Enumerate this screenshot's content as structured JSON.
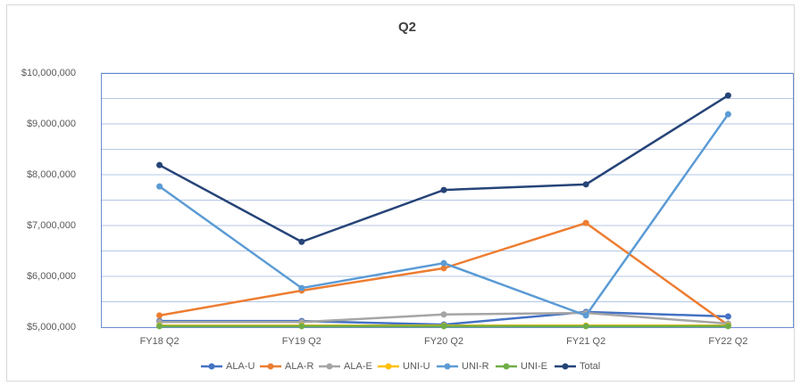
{
  "chart_data": {
    "type": "line",
    "title": "Q2",
    "categories": [
      "FY18 Q2",
      "FY19 Q2",
      "FY20 Q2",
      "FY21 Q2",
      "FY22 Q2"
    ],
    "series": [
      {
        "name": "ALA-U",
        "color": "#4472c4",
        "values": [
          5120000,
          5120000,
          5050000,
          5300000,
          5210000
        ]
      },
      {
        "name": "ALA-R",
        "color": "#ed7d31",
        "values": [
          5230000,
          5720000,
          6160000,
          7050000,
          5040000
        ]
      },
      {
        "name": "ALA-E",
        "color": "#a5a5a5",
        "values": [
          5100000,
          5100000,
          5250000,
          5280000,
          5070000
        ]
      },
      {
        "name": "UNI-U",
        "color": "#ffc000",
        "values": [
          5030000,
          5030000,
          5030000,
          5030000,
          5030000
        ]
      },
      {
        "name": "UNI-R",
        "color": "#5b9bd5",
        "values": [
          7770000,
          5770000,
          6260000,
          5230000,
          9190000
        ]
      },
      {
        "name": "UNI-E",
        "color": "#70ad47",
        "values": [
          5020000,
          5020000,
          5020000,
          5020000,
          5020000
        ]
      },
      {
        "name": "Total",
        "color": "#264478",
        "values": [
          8190000,
          6680000,
          7700000,
          7810000,
          9560000
        ]
      }
    ],
    "ylim": [
      5000000,
      10000000
    ],
    "yticks": [
      {
        "value": 5000000,
        "label": "$5,000,000"
      },
      {
        "value": 6000000,
        "label": "$6,000,000"
      },
      {
        "value": 7000000,
        "label": "$7,000,000"
      },
      {
        "value": 8000000,
        "label": "$8,000,000"
      },
      {
        "value": 9000000,
        "label": "$9,000,000"
      },
      {
        "value": 10000000,
        "label": "$10,000,000"
      }
    ],
    "grid_lines": [
      5500000,
      6000000,
      6500000,
      7000000,
      7500000,
      8000000,
      8500000,
      9000000,
      9500000,
      10000000
    ],
    "grid": true,
    "legend": "bottom"
  }
}
